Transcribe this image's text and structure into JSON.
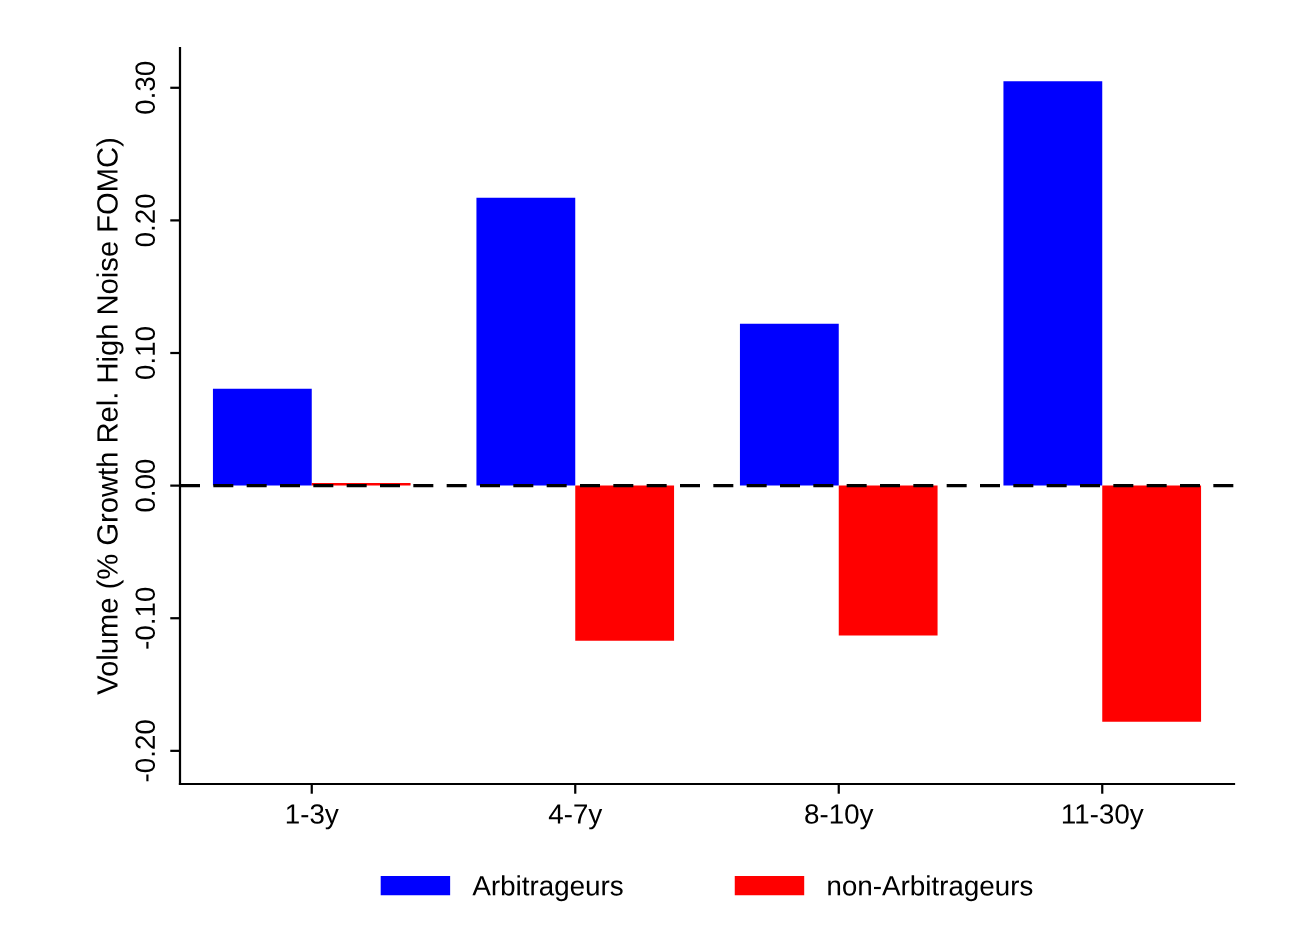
{
  "chart_data": {
    "type": "bar",
    "ylabel": "Volume (% Growth Rel. High Noise FOMC)",
    "categories": [
      "1-3y",
      "4-7y",
      "8-10y",
      "11-30y"
    ],
    "series": [
      {
        "name": "Arbitrageurs",
        "color": "#0000ff",
        "values": [
          0.073,
          0.217,
          0.122,
          0.305
        ]
      },
      {
        "name": "non-Arbitrageurs",
        "color": "#ff0000",
        "values": [
          0.002,
          -0.117,
          -0.113,
          -0.178
        ]
      }
    ],
    "ylim": [
      -0.225,
      0.33
    ],
    "yticks": [
      {
        "value": -0.2,
        "label": "-0.20"
      },
      {
        "value": -0.1,
        "label": "-0.10"
      },
      {
        "value": 0,
        "label": "0.00"
      },
      {
        "value": 0.1,
        "label": "0.10"
      },
      {
        "value": 0.2,
        "label": "0.20"
      },
      {
        "value": 0.3,
        "label": "0.30"
      }
    ],
    "ref_lines": [
      {
        "axis": "y",
        "value": 0,
        "color": "#000000",
        "line_style": "dashed"
      }
    ],
    "grid": false,
    "legend": "bottom"
  }
}
